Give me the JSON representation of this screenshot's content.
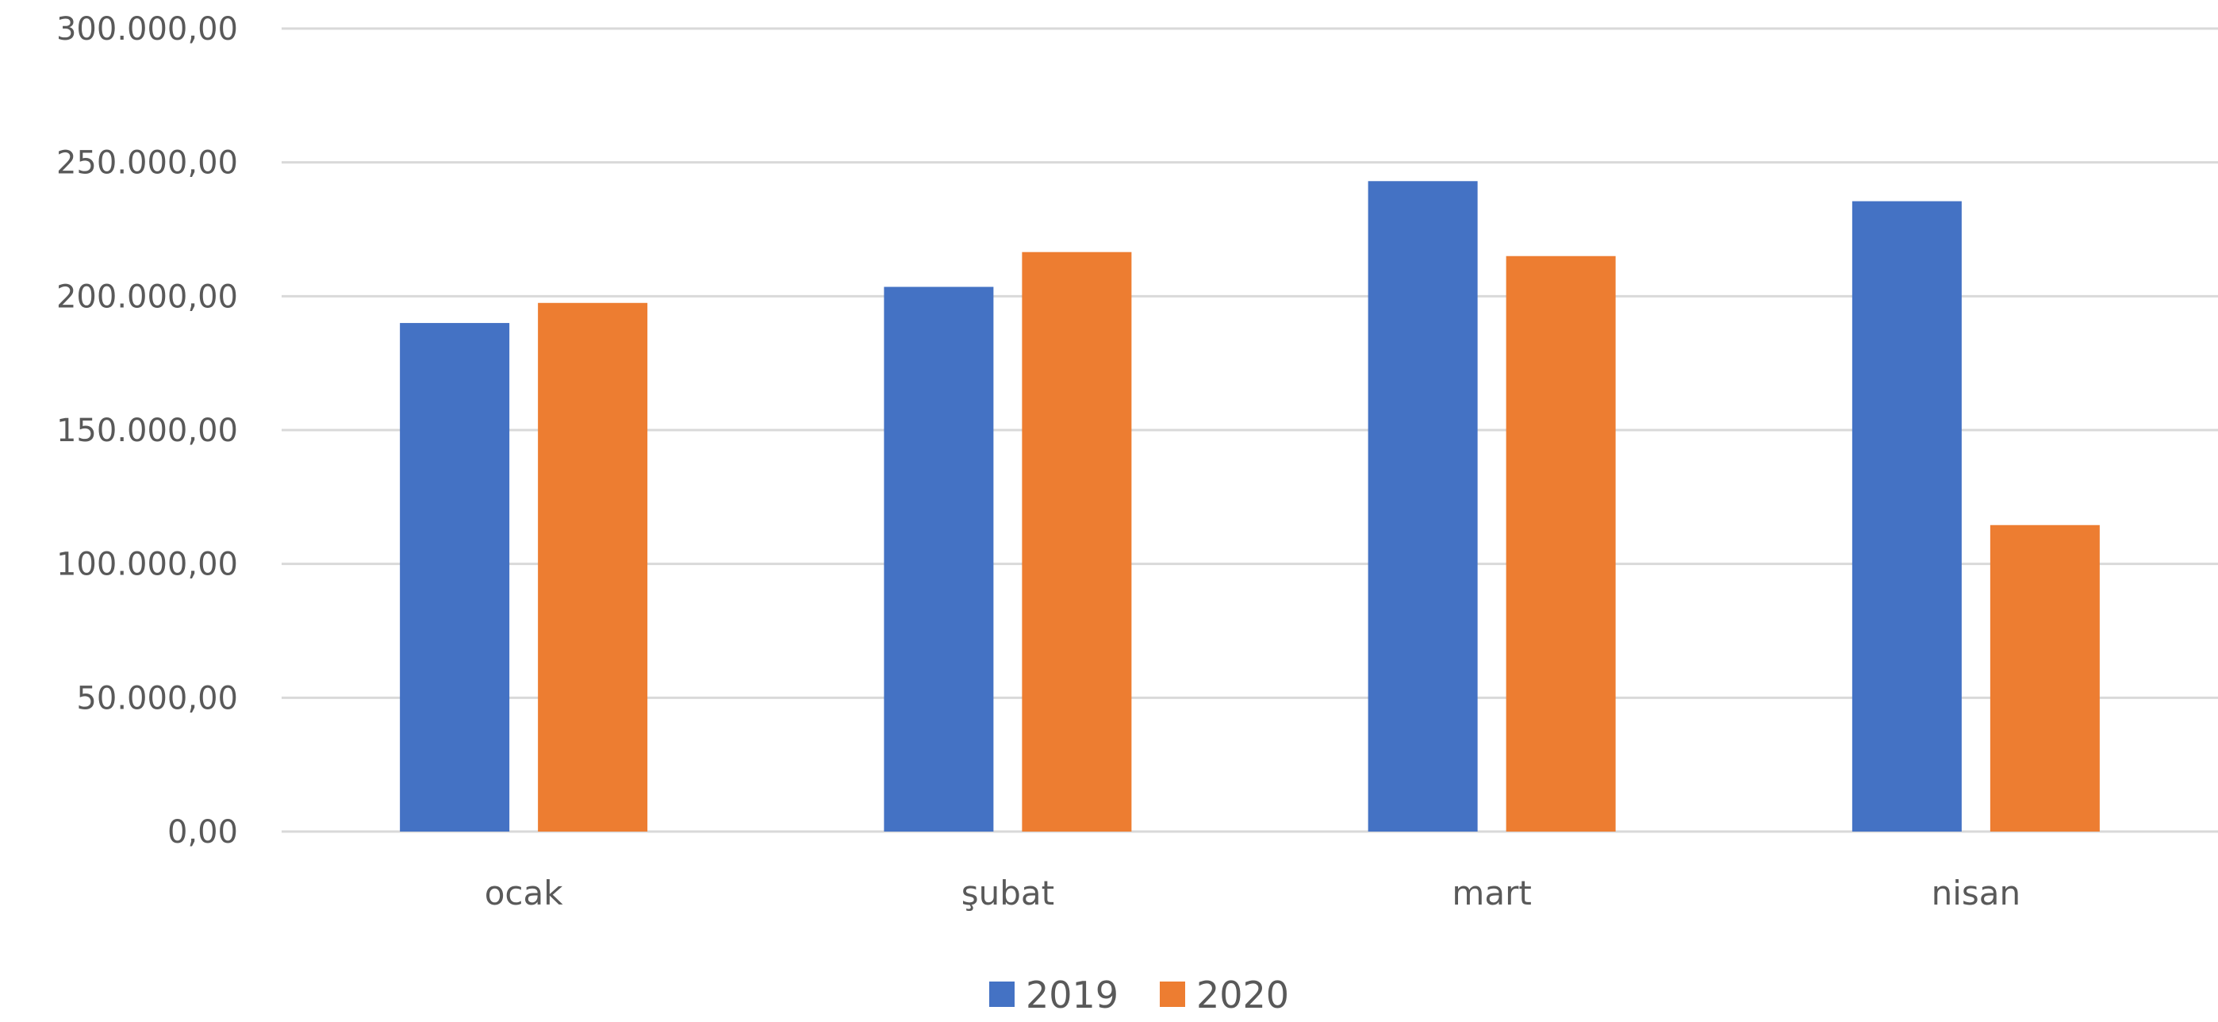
{
  "chart_data": {
    "type": "bar",
    "categories": [
      "ocak",
      "şubat",
      "mart",
      "nisan"
    ],
    "series": [
      {
        "name": "2019",
        "color": "#4472C4",
        "values": [
          190000,
          203500,
          243000,
          235500
        ]
      },
      {
        "name": "2020",
        "color": "#ED7D31",
        "values": [
          197500,
          216500,
          215000,
          114500
        ]
      }
    ],
    "ylim": [
      0,
      300000
    ],
    "yticks": [
      "0,00",
      "50.000,00",
      "100.000,00",
      "150.000,00",
      "200.000,00",
      "250.000,00",
      "300.000,00"
    ],
    "ytick_values": [
      0,
      50000,
      100000,
      150000,
      200000,
      250000,
      300000
    ],
    "grid": true,
    "legend_position": "bottom",
    "title": "",
    "xlabel": "",
    "ylabel": ""
  }
}
